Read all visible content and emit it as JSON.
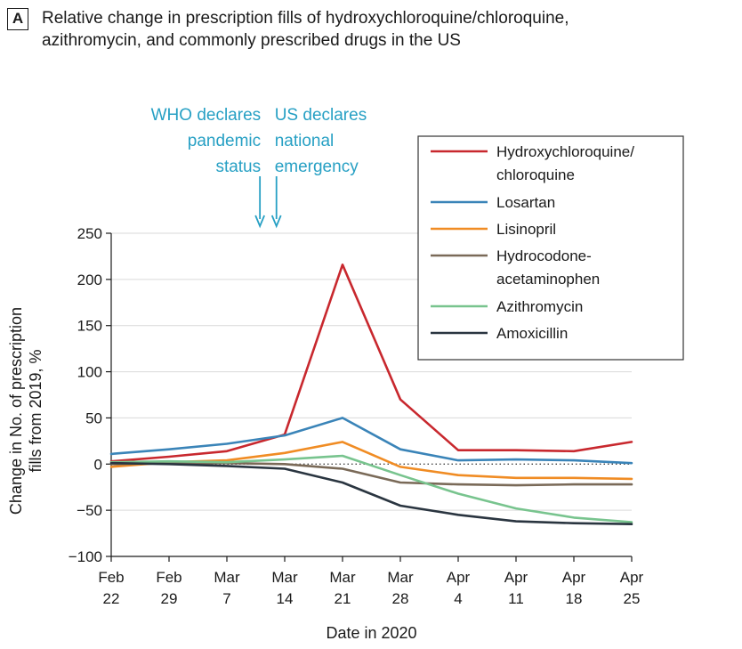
{
  "figure": {
    "panel_letter": "A",
    "title_lines": [
      "Relative change in prescription fills of hydroxychloroquine/chloroquine,",
      "azithromycin, and commonly prescribed drugs in the US"
    ]
  },
  "annotations": [
    {
      "lines": [
        "WHO declares",
        "pandemic",
        "status"
      ],
      "x": "Mar 11",
      "color": "#27a0c4"
    },
    {
      "lines": [
        "US declares",
        "national",
        "emergency"
      ],
      "x": "Mar 13",
      "color": "#27a0c4"
    }
  ],
  "chart_data": {
    "type": "line",
    "categories": [
      "Feb 22",
      "Feb 29",
      "Mar 7",
      "Mar 14",
      "Mar 21",
      "Mar 28",
      "Apr 4",
      "Apr 11",
      "Apr 18",
      "Apr 25"
    ],
    "x_tick_lines": [
      [
        "Feb",
        "22"
      ],
      [
        "Feb",
        "29"
      ],
      [
        "Mar",
        "7"
      ],
      [
        "Mar",
        "14"
      ],
      [
        "Mar",
        "21"
      ],
      [
        "Mar",
        "28"
      ],
      [
        "Apr",
        "4"
      ],
      [
        "Apr",
        "11"
      ],
      [
        "Apr",
        "18"
      ],
      [
        "Apr",
        "25"
      ]
    ],
    "xlabel": "Date in 2020",
    "ylabel_lines": [
      "Change in No. of prescription",
      "fills from 2019, %"
    ],
    "ylim": [
      -100,
      250
    ],
    "yticks": [
      250,
      200,
      150,
      100,
      50,
      0,
      -50,
      -100
    ],
    "ytick_labels": [
      "250",
      "200",
      "150",
      "100",
      "50",
      "0",
      "−50",
      "−100"
    ],
    "zero_reference_line": "dotted",
    "grid": "horizontal",
    "legend_position": "top-right",
    "series": [
      {
        "name": "Hydroxychloroquine/chloroquine",
        "legend_lines": [
          "Hydroxychloroquine/",
          "chloroquine"
        ],
        "color": "#c8282e",
        "values": [
          3,
          8,
          14,
          32,
          216,
          70,
          15,
          15,
          14,
          24
        ]
      },
      {
        "name": "Losartan",
        "legend_lines": [
          "Losartan"
        ],
        "color": "#3a84b8",
        "values": [
          11,
          16,
          22,
          31,
          50,
          16,
          4,
          5,
          4,
          1
        ]
      },
      {
        "name": "Lisinopril",
        "legend_lines": [
          "Lisinopril"
        ],
        "color": "#f08c24",
        "values": [
          -3,
          2,
          4,
          12,
          24,
          -3,
          -12,
          -15,
          -15,
          -16
        ]
      },
      {
        "name": "Hydrocodone-acetaminophen",
        "legend_lines": [
          "Hydrocodone-",
          "acetaminophen"
        ],
        "color": "#7a6a58",
        "values": [
          0,
          1,
          1,
          0,
          -5,
          -20,
          -22,
          -23,
          -22,
          -22
        ]
      },
      {
        "name": "Azithromycin",
        "legend_lines": [
          "Azithromycin"
        ],
        "color": "#78c48e",
        "values": [
          2,
          3,
          2,
          5,
          9,
          -12,
          -32,
          -48,
          -58,
          -63
        ]
      },
      {
        "name": "Amoxicillin",
        "legend_lines": [
          "Amoxicillin"
        ],
        "color": "#2a3540",
        "values": [
          1,
          0,
          -2,
          -5,
          -20,
          -45,
          -55,
          -62,
          -64,
          -65
        ]
      }
    ]
  }
}
